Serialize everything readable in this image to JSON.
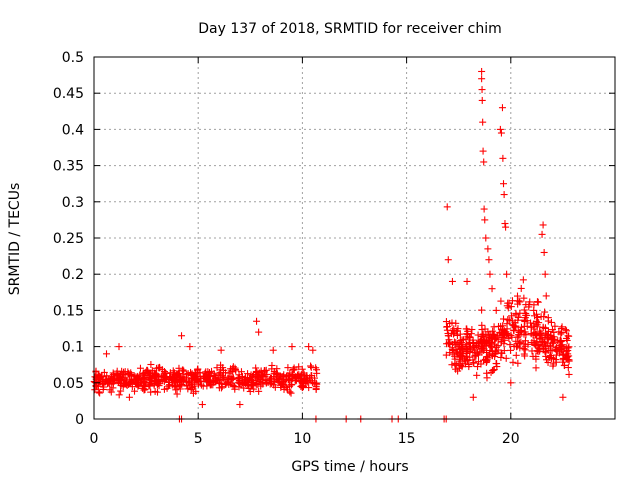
{
  "chart_data": {
    "type": "scatter",
    "title": "Day 137 of 2018, SRMTID for receiver chim",
    "xlabel": "GPS time / hours",
    "ylabel": "SRMTID / TECUs",
    "xlim": [
      0,
      25
    ],
    "ylim": [
      0,
      0.5
    ],
    "xticks": [
      0,
      5,
      10,
      15,
      20
    ],
    "xtick_labels": [
      "0",
      "5",
      "10",
      "15",
      "20"
    ],
    "yticks": [
      0,
      0.05,
      0.1,
      0.15,
      0.2,
      0.25,
      0.3,
      0.35,
      0.4,
      0.45,
      0.5
    ],
    "ytick_labels": [
      "0",
      "0.05",
      "0.1",
      "0.15",
      "0.2",
      "0.25",
      "0.3",
      "0.35",
      "0.4",
      "0.45",
      "0.5"
    ],
    "grid": true,
    "marker": "+",
    "color": "#ff0000",
    "series": [
      {
        "name": "SRMTID",
        "clusters": [
          {
            "x_range": [
              0.0,
              10.7
            ],
            "count": 650,
            "baseline": 0.055,
            "spread": 0.018
          },
          {
            "x_range": [
              16.9,
              22.8
            ],
            "count": 500,
            "baseline": 0.095,
            "spread": 0.035
          }
        ],
        "points": [
          [
            0.1,
            0.045
          ],
          [
            0.6,
            0.09
          ],
          [
            1.2,
            0.1
          ],
          [
            1.7,
            0.03
          ],
          [
            2.4,
            0.04
          ],
          [
            3.0,
            0.07
          ],
          [
            4.2,
            0.115
          ],
          [
            4.6,
            0.1
          ],
          [
            5.2,
            0.02
          ],
          [
            6.1,
            0.095
          ],
          [
            7.0,
            0.02
          ],
          [
            7.8,
            0.135
          ],
          [
            7.9,
            0.12
          ],
          [
            8.6,
            0.095
          ],
          [
            9.5,
            0.1
          ],
          [
            10.3,
            0.1
          ],
          [
            10.5,
            0.095
          ],
          [
            16.95,
            0.293
          ],
          [
            17.0,
            0.22
          ],
          [
            17.2,
            0.19
          ],
          [
            17.6,
            0.08
          ],
          [
            17.9,
            0.19
          ],
          [
            18.2,
            0.03
          ],
          [
            18.6,
            0.48
          ],
          [
            18.6,
            0.47
          ],
          [
            18.62,
            0.455
          ],
          [
            18.63,
            0.44
          ],
          [
            18.65,
            0.41
          ],
          [
            18.67,
            0.37
          ],
          [
            18.7,
            0.355
          ],
          [
            18.72,
            0.29
          ],
          [
            18.75,
            0.275
          ],
          [
            18.8,
            0.25
          ],
          [
            18.9,
            0.235
          ],
          [
            18.95,
            0.22
          ],
          [
            19.0,
            0.2
          ],
          [
            19.1,
            0.18
          ],
          [
            19.3,
            0.15
          ],
          [
            19.5,
            0.4
          ],
          [
            19.55,
            0.395
          ],
          [
            19.6,
            0.43
          ],
          [
            19.62,
            0.36
          ],
          [
            19.65,
            0.325
          ],
          [
            19.68,
            0.31
          ],
          [
            19.72,
            0.27
          ],
          [
            19.75,
            0.265
          ],
          [
            19.8,
            0.2
          ],
          [
            19.85,
            0.16
          ],
          [
            20.0,
            0.05
          ],
          [
            20.7,
            0.14
          ],
          [
            21.1,
            0.15
          ],
          [
            21.5,
            0.255
          ],
          [
            21.55,
            0.268
          ],
          [
            21.6,
            0.23
          ],
          [
            21.65,
            0.2
          ],
          [
            21.7,
            0.17
          ],
          [
            21.8,
            0.14
          ],
          [
            22.1,
            0.11
          ],
          [
            22.5,
            0.03
          ],
          [
            22.8,
            0.08
          ]
        ],
        "zero_points": [
          4.1,
          4.2,
          10.65,
          12.1,
          12.8,
          14.3,
          14.6,
          16.8,
          16.9
        ]
      }
    ]
  }
}
